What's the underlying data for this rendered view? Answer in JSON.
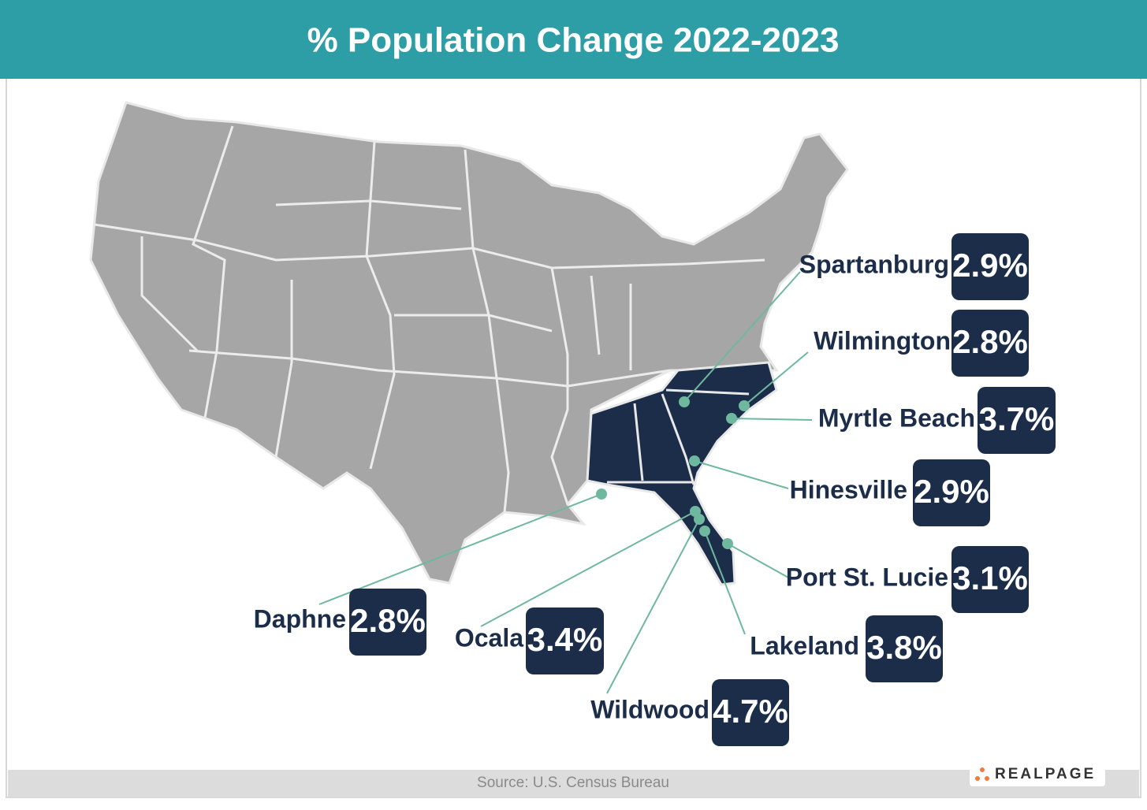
{
  "title": "% Population Change 2022-2023",
  "cities": [
    {
      "name": "Spartanburg",
      "value": 2.9,
      "label": "2.9%"
    },
    {
      "name": "Wilmington",
      "value": 2.8,
      "label": "2.8%"
    },
    {
      "name": "Myrtle Beach",
      "value": 3.7,
      "label": "3.7%"
    },
    {
      "name": "Hinesville",
      "value": 2.9,
      "label": "2.9%"
    },
    {
      "name": "Port St. Lucie",
      "value": 3.1,
      "label": "3.1%"
    },
    {
      "name": "Lakeland",
      "value": 3.8,
      "label": "3.8%"
    },
    {
      "name": "Wildwood",
      "value": 4.7,
      "label": "4.7%"
    },
    {
      "name": "Ocala",
      "value": 3.4,
      "label": "3.4%"
    },
    {
      "name": "Daphne",
      "value": 2.8,
      "label": "2.8%"
    }
  ],
  "source": "Source: U.S. Census Bureau",
  "logo": "REALPAGE"
}
